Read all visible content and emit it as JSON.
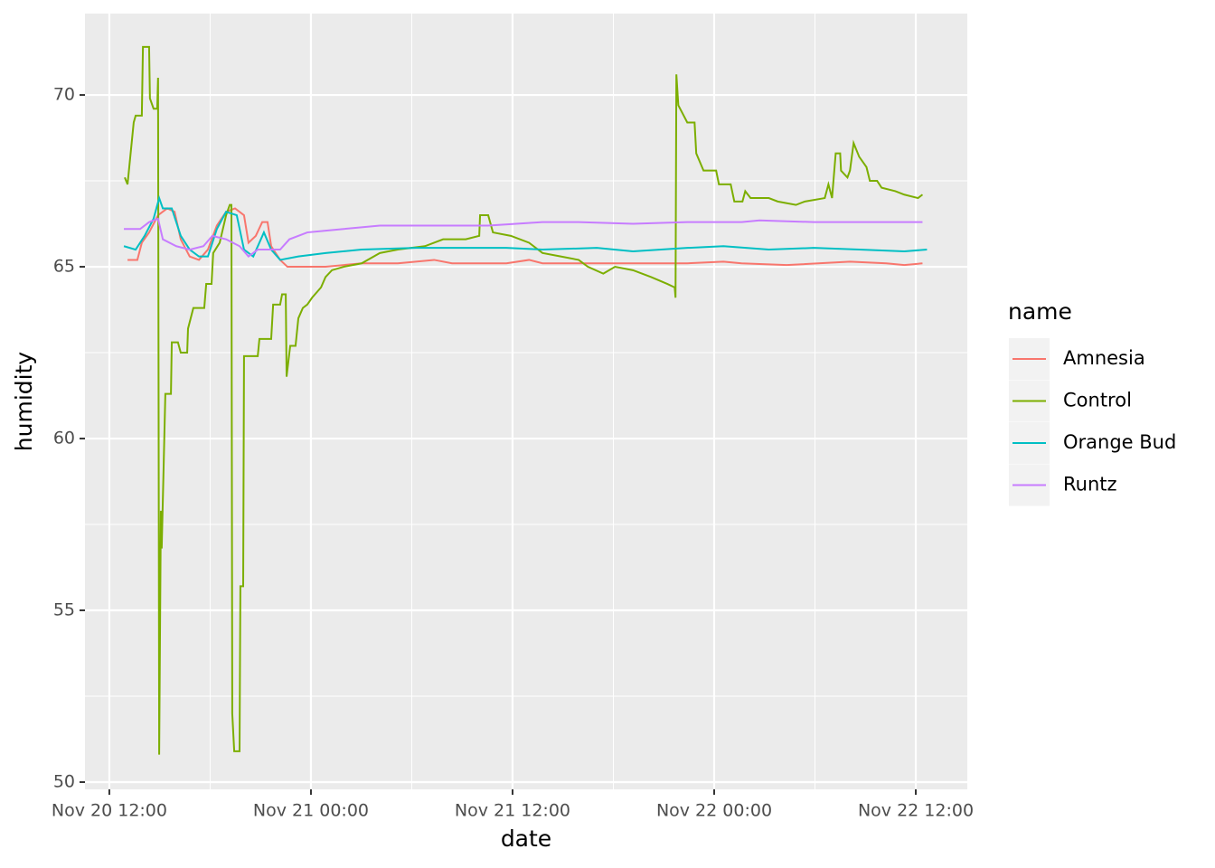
{
  "chart_data": {
    "type": "line",
    "x_label": "date",
    "y_label": "humidity",
    "legend_title": "name",
    "xlim": [
      "Nov 20 10:33",
      "Nov 22 15:04"
    ],
    "xticks": [
      "Nov 20 12:00",
      "Nov 21 00:00",
      "Nov 21 12:00",
      "Nov 22 00:00",
      "Nov 22 12:00"
    ],
    "ylim": [
      49.79,
      72.37
    ],
    "yticks": [
      50,
      55,
      60,
      65,
      70
    ],
    "grid": true,
    "legend_position": "right",
    "series": [
      {
        "name": "Amnesia",
        "color": "#F8766D",
        "x": [
          "Nov 20 13:05",
          "Nov 20 13:40",
          "Nov 20 13:56",
          "Nov 20 14:22",
          "Nov 20 14:54",
          "Nov 20 15:27",
          "Nov 20 15:53",
          "Nov 20 16:15",
          "Nov 20 16:47",
          "Nov 20 17:20",
          "Nov 20 17:52",
          "Nov 20 18:24",
          "Nov 20 18:57",
          "Nov 20 19:29",
          "Nov 20 20:01",
          "Nov 20 20:17",
          "Nov 20 20:43",
          "Nov 20 21:06",
          "Nov 20 21:25",
          "Nov 20 21:38",
          "Nov 20 22:10",
          "Nov 20 22:36",
          "Nov 20 23:15",
          "Nov 21 00:52",
          "Nov 21 03:01",
          "Nov 21 05:10",
          "Nov 21 07:20",
          "Nov 21 08:24",
          "Nov 21 11:38",
          "Nov 21 12:59",
          "Nov 21 13:47",
          "Nov 21 15:56",
          "Nov 21 19:10",
          "Nov 21 22:24",
          "Nov 22 00:33",
          "Nov 22 01:38",
          "Nov 22 04:19",
          "Nov 22 08:05",
          "Nov 22 10:15",
          "Nov 22 11:19",
          "Nov 22 12:24"
        ],
        "values": [
          65.2,
          65.2,
          65.7,
          66.0,
          66.5,
          66.7,
          66.6,
          65.8,
          65.3,
          65.2,
          65.5,
          66.2,
          66.6,
          66.7,
          66.5,
          65.7,
          65.9,
          66.3,
          66.3,
          65.6,
          65.2,
          65.0,
          65.0,
          65.0,
          65.1,
          65.1,
          65.2,
          65.1,
          65.1,
          65.2,
          65.1,
          65.1,
          65.1,
          65.1,
          65.15,
          65.1,
          65.05,
          65.15,
          65.1,
          65.05,
          65.1
        ]
      },
      {
        "name": "Control",
        "color": "#7CAE00",
        "x": [
          "Nov 20 12:55",
          "Nov 20 13:05",
          "Nov 20 13:27",
          "Nov 20 13:34",
          "Nov 20 13:56",
          "Nov 20 14:00",
          "Nov 20 14:22",
          "Nov 20 14:25",
          "Nov 20 14:38",
          "Nov 20 14:51",
          "Nov 20 14:54",
          "Nov 20 14:58",
          "Nov 20 15:04",
          "Nov 20 15:07",
          "Nov 20 15:20",
          "Nov 20 15:40",
          "Nov 20 15:43",
          "Nov 20 16:05",
          "Nov 20 16:15",
          "Nov 20 16:38",
          "Nov 20 16:41",
          "Nov 20 17:00",
          "Nov 20 17:39",
          "Nov 20 17:46",
          "Nov 20 18:05",
          "Nov 20 18:11",
          "Nov 20 18:34",
          "Nov 20 18:57",
          "Nov 20 19:10",
          "Nov 20 19:16",
          "Nov 20 19:19",
          "Nov 20 19:26",
          "Nov 20 19:45",
          "Nov 20 19:48",
          "Nov 20 19:58",
          "Nov 20 20:01",
          "Nov 20 20:50",
          "Nov 20 20:56",
          "Nov 20 21:38",
          "Nov 20 21:45",
          "Nov 20 22:10",
          "Nov 20 22:17",
          "Nov 20 22:30",
          "Nov 20 22:33",
          "Nov 20 22:46",
          "Nov 20 23:05",
          "Nov 20 23:15",
          "Nov 20 23:31",
          "Nov 20 23:47",
          "Nov 21 00:04",
          "Nov 21 00:36",
          "Nov 21 00:52",
          "Nov 21 01:15",
          "Nov 21 01:57",
          "Nov 21 03:01",
          "Nov 21 04:06",
          "Nov 21 05:10",
          "Nov 21 06:47",
          "Nov 21 07:52",
          "Nov 21 09:13",
          "Nov 21 10:01",
          "Nov 21 10:04",
          "Nov 21 10:33",
          "Nov 21 10:50",
          "Nov 21 11:54",
          "Nov 21 12:59",
          "Nov 21 13:47",
          "Nov 21 14:52",
          "Nov 21 15:56",
          "Nov 21 16:29",
          "Nov 21 17:24",
          "Nov 21 18:06",
          "Nov 21 19:10",
          "Nov 21 20:15",
          "Nov 21 21:13",
          "Nov 21 21:39",
          "Nov 21 21:42",
          "Nov 21 21:45",
          "Nov 21 21:52",
          "Nov 21 22:24",
          "Nov 21 22:50",
          "Nov 21 22:56",
          "Nov 21 23:22",
          "Nov 22 00:07",
          "Nov 22 00:17",
          "Nov 22 00:59",
          "Nov 22 01:12",
          "Nov 22 01:41",
          "Nov 22 01:51",
          "Nov 22 02:10",
          "Nov 22 03:15",
          "Nov 22 03:47",
          "Nov 22 04:52",
          "Nov 22 05:24",
          "Nov 22 06:35",
          "Nov 22 06:48",
          "Nov 22 07:01",
          "Nov 22 07:14",
          "Nov 22 07:30",
          "Nov 22 07:33",
          "Nov 22 07:56",
          "Nov 22 08:05",
          "Nov 22 08:18",
          "Nov 22 08:38",
          "Nov 22 09:04",
          "Nov 22 09:16",
          "Nov 22 09:42",
          "Nov 22 09:58",
          "Nov 22 10:47",
          "Nov 22 11:19",
          "Nov 22 12:08",
          "Nov 22 12:24"
        ],
        "values": [
          67.6,
          67.4,
          69.2,
          69.4,
          69.4,
          71.4,
          71.4,
          69.9,
          69.6,
          69.6,
          70.5,
          50.8,
          57.9,
          56.8,
          61.3,
          61.3,
          62.8,
          62.8,
          62.5,
          62.5,
          63.2,
          63.8,
          63.8,
          64.5,
          64.5,
          65.4,
          65.7,
          66.5,
          66.8,
          66.8,
          52.0,
          50.9,
          50.9,
          55.7,
          55.7,
          62.4,
          62.4,
          62.9,
          62.9,
          63.9,
          63.9,
          64.2,
          64.2,
          61.8,
          62.7,
          62.7,
          63.5,
          63.8,
          63.9,
          64.1,
          64.4,
          64.7,
          64.9,
          65.0,
          65.1,
          65.4,
          65.5,
          65.6,
          65.8,
          65.8,
          65.9,
          66.5,
          66.5,
          66.0,
          65.9,
          65.7,
          65.4,
          65.3,
          65.2,
          65.0,
          64.8,
          65.0,
          64.9,
          64.7,
          64.5,
          64.4,
          64.1,
          70.6,
          69.7,
          69.2,
          69.2,
          68.3,
          67.8,
          67.8,
          67.4,
          67.4,
          66.9,
          66.9,
          67.2,
          67.0,
          67.0,
          66.9,
          66.8,
          66.9,
          67.0,
          67.4,
          67.0,
          68.3,
          68.3,
          67.8,
          67.6,
          67.8,
          68.6,
          68.2,
          67.9,
          67.5,
          67.5,
          67.3,
          67.2,
          67.1,
          67.0,
          67.1
        ]
      },
      {
        "name": "Orange Bud",
        "color": "#00BFC4",
        "x": [
          "Nov 20 12:52",
          "Nov 20 13:34",
          "Nov 20 14:06",
          "Nov 20 14:38",
          "Nov 20 14:58",
          "Nov 20 15:11",
          "Nov 20 15:43",
          "Nov 20 16:15",
          "Nov 20 16:47",
          "Nov 20 17:20",
          "Nov 20 17:52",
          "Nov 20 18:24",
          "Nov 20 18:57",
          "Nov 20 19:35",
          "Nov 20 20:01",
          "Nov 20 20:34",
          "Nov 20 21:12",
          "Nov 20 21:38",
          "Nov 20 22:10",
          "Nov 20 23:15",
          "Nov 21 00:52",
          "Nov 21 03:01",
          "Nov 21 06:15",
          "Nov 21 08:24",
          "Nov 21 11:38",
          "Nov 21 13:47",
          "Nov 21 17:01",
          "Nov 21 19:10",
          "Nov 21 22:24",
          "Nov 22 00:33",
          "Nov 22 03:15",
          "Nov 22 05:56",
          "Nov 22 08:38",
          "Nov 22 11:19",
          "Nov 22 12:40"
        ],
        "values": [
          65.6,
          65.5,
          65.9,
          66.4,
          67.0,
          66.7,
          66.7,
          65.9,
          65.5,
          65.3,
          65.3,
          66.1,
          66.6,
          66.5,
          65.5,
          65.3,
          66.0,
          65.5,
          65.2,
          65.3,
          65.4,
          65.5,
          65.55,
          65.55,
          65.55,
          65.5,
          65.55,
          65.45,
          65.55,
          65.6,
          65.5,
          65.55,
          65.5,
          65.45,
          65.5
        ]
      },
      {
        "name": "Runtz",
        "color": "#C77CFF",
        "x": [
          "Nov 20 12:52",
          "Nov 20 13:50",
          "Nov 20 14:22",
          "Nov 20 14:54",
          "Nov 20 15:11",
          "Nov 20 15:59",
          "Nov 20 16:47",
          "Nov 20 17:36",
          "Nov 20 18:08",
          "Nov 20 18:57",
          "Nov 20 19:45",
          "Nov 20 20:17",
          "Nov 20 20:50",
          "Nov 20 21:22",
          "Nov 20 22:10",
          "Nov 20 22:43",
          "Nov 20 23:47",
          "Nov 21 01:57",
          "Nov 21 04:06",
          "Nov 21 07:20",
          "Nov 21 10:33",
          "Nov 21 13:47",
          "Nov 21 15:56",
          "Nov 21 19:10",
          "Nov 21 22:24",
          "Nov 22 01:38",
          "Nov 22 02:42",
          "Nov 22 05:56",
          "Nov 22 08:05",
          "Nov 22 11:19",
          "Nov 22 12:24"
        ],
        "values": [
          66.1,
          66.1,
          66.3,
          66.4,
          65.8,
          65.6,
          65.5,
          65.6,
          65.9,
          65.8,
          65.6,
          65.3,
          65.5,
          65.5,
          65.5,
          65.8,
          66.0,
          66.1,
          66.2,
          66.2,
          66.2,
          66.3,
          66.3,
          66.25,
          66.3,
          66.3,
          66.35,
          66.3,
          66.3,
          66.3,
          66.3
        ]
      }
    ]
  }
}
